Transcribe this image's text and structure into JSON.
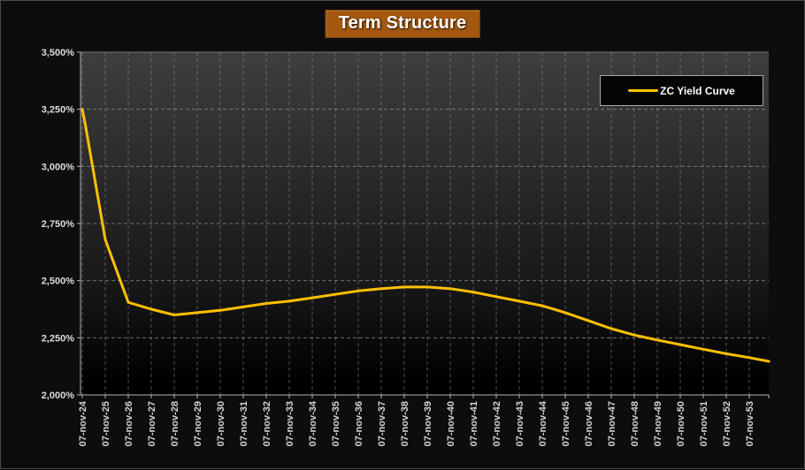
{
  "title": "Term Structure",
  "legend": {
    "label": "ZC Yield Curve"
  },
  "colors": {
    "page_bg": "#0d0d0d",
    "frame_border": "#4a4a4a",
    "title_bg": "#a4570e",
    "title_border": "#8a4a0d",
    "curve": "#ffc000",
    "grid": "#8f8f8f",
    "axis": "#b4b4b4",
    "tick_label": "#dcdcdc",
    "plot_gradient_top": "#3e3e3e",
    "plot_gradient_bottom": "#000000",
    "legend_bg": "#050505",
    "legend_border": "#a6a6a6"
  },
  "y_axis": {
    "tick_labels": [
      "3,500%",
      "3,250%",
      "3,000%",
      "2,750%",
      "2,500%",
      "2,250%",
      "2,000%"
    ],
    "tick_values": [
      3.5,
      3.25,
      3.0,
      2.75,
      2.5,
      2.25,
      2.0
    ]
  },
  "chart_data": {
    "type": "line",
    "title": "Term Structure",
    "legend_position": "top-right",
    "grid": "dashed",
    "ylim": [
      2.0,
      3.5
    ],
    "y_tick_step": 0.25,
    "y_tick_format": "0,000%",
    "categories": [
      "07-nov-24",
      "07-nov-25",
      "07-nov-26",
      "07-nov-27",
      "07-nov-28",
      "07-nov-29",
      "07-nov-30",
      "07-nov-31",
      "07-nov-32",
      "07-nov-33",
      "07-nov-34",
      "07-nov-35",
      "07-nov-36",
      "07-nov-37",
      "07-nov-38",
      "07-nov-39",
      "07-nov-40",
      "07-nov-41",
      "07-nov-42",
      "07-nov-43",
      "07-nov-44",
      "07-nov-45",
      "07-nov-46",
      "07-nov-47",
      "07-nov-48",
      "07-nov-49",
      "07-nov-50",
      "07-nov-51",
      "07-nov-52",
      "07-nov-53"
    ],
    "series": [
      {
        "name": "ZC Yield Curve",
        "color": "#ffc000",
        "values": [
          3.25,
          2.68,
          2.405,
          2.375,
          2.35,
          2.36,
          2.37,
          2.385,
          2.4,
          2.41,
          2.425,
          2.44,
          2.455,
          2.465,
          2.472,
          2.472,
          2.465,
          2.45,
          2.43,
          2.41,
          2.39,
          2.36,
          2.325,
          2.29,
          2.262,
          2.24,
          2.22,
          2.2,
          2.18,
          2.163
        ],
        "extra_points": [
          {
            "x": 0.12,
            "value": 3.19
          },
          {
            "x": 29.85,
            "value": 2.147
          }
        ]
      }
    ]
  }
}
